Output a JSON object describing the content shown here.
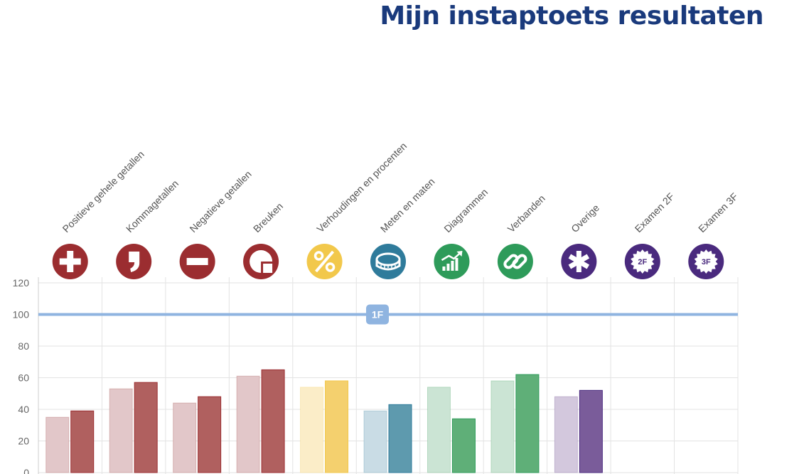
{
  "page": {
    "title": "Mijn instaptoets resultaten"
  },
  "chart_data": {
    "type": "bar",
    "categories": [
      "Positieve gehele getallen",
      "Kommagetallen",
      "Negatieve getallen",
      "Breuken",
      "Verhoudingen en procenten",
      "Meten en maten",
      "Diagrammen",
      "Verbanden",
      "Overige",
      "Examen 2F",
      "Examen 3F"
    ],
    "category_icons": [
      "plus-icon",
      "comma-icon",
      "minus-icon",
      "fraction-pie-icon",
      "percent-icon",
      "measuring-tape-icon",
      "bar-growth-chart-icon",
      "link-chain-icon",
      "asterisk-icon",
      "badge-2f-icon",
      "badge-3f-icon"
    ],
    "category_colors": [
      "#9b2d30",
      "#9b2d30",
      "#9b2d30",
      "#9b2d30",
      "#f2c84b",
      "#2f7b9b",
      "#2e9b5a",
      "#2e9b5a",
      "#4a2a7e",
      "#4a2a7e",
      "#4a2a7e"
    ],
    "light_colors": [
      "#e2c7c9",
      "#e2c7c9",
      "#e2c7c9",
      "#e2c7c9",
      "#fbedc8",
      "#c9dce5",
      "#cbe4d4",
      "#cbe4d4",
      "#d3c8dd",
      "#d3c8dd",
      "#d3c8dd"
    ],
    "dark_colors": [
      "#b0605f",
      "#b0605f",
      "#b0605f",
      "#b0605f",
      "#f4d06e",
      "#5e9aae",
      "#5faf78",
      "#5faf78",
      "#7a5c9a",
      "#7a5c9a",
      "#7a5c9a"
    ],
    "badge_text": [
      "",
      "",
      "",
      "",
      "",
      "",
      "",
      "",
      "",
      "2F",
      "3F"
    ],
    "series": [
      {
        "values": [
          35,
          53,
          44,
          61,
          54,
          39,
          54,
          58,
          48,
          null,
          null
        ]
      },
      {
        "values": [
          39,
          57,
          48,
          65,
          58,
          43,
          34,
          62,
          52,
          null,
          null
        ]
      }
    ],
    "ylim": [
      0,
      120
    ],
    "yticks": [
      0,
      20,
      40,
      60,
      80,
      100,
      120
    ],
    "reference_line": {
      "value": 100,
      "label": "1F",
      "color": "#8fb4e0"
    },
    "grid": true
  }
}
